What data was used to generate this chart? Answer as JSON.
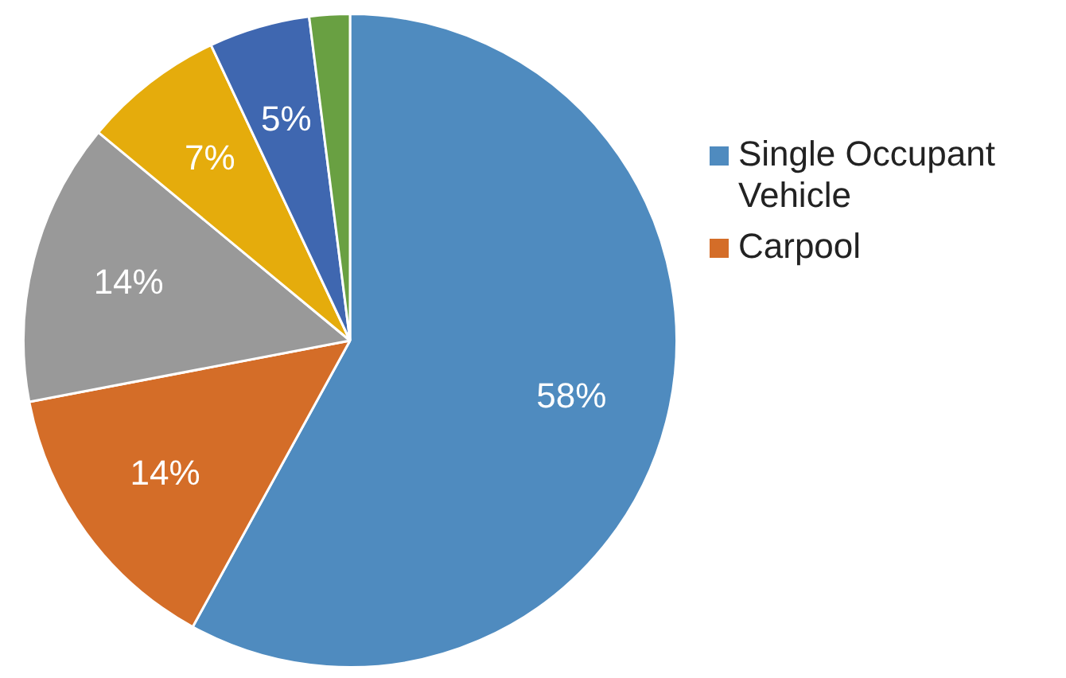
{
  "chart_data": {
    "type": "pie",
    "categories": [
      "Single Occupant Vehicle",
      "Carpool",
      null,
      null,
      null,
      null
    ],
    "values": [
      58,
      14,
      14,
      7,
      5,
      2
    ],
    "colors": [
      "#4f8bbf",
      "#d46d28",
      "#999999",
      "#e5ac0c",
      "#3f67b0",
      "#69a042"
    ],
    "value_labels": [
      "58%",
      "14%",
      "14%",
      "7%",
      "5%",
      null
    ],
    "legend": "right"
  }
}
